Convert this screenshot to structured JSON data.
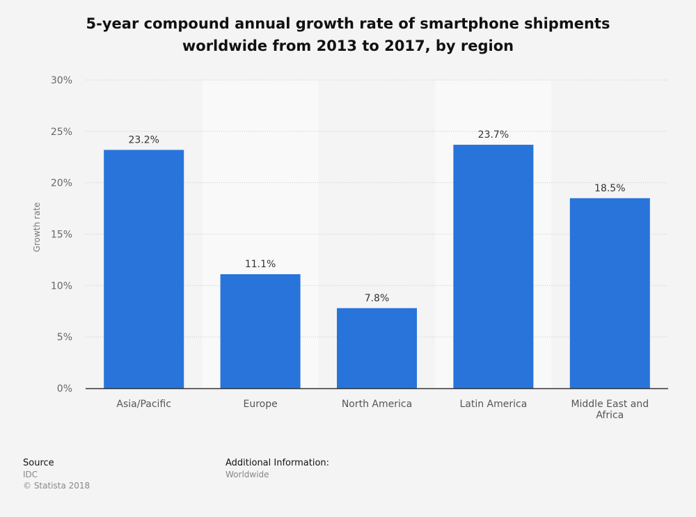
{
  "title_line1": "5-year compound annual growth rate of smartphone shipments",
  "title_line2": "worldwide from 2013 to 2017, by region",
  "chart_data": {
    "type": "bar",
    "title": "5-year compound annual growth rate of smartphone shipments worldwide from 2013 to 2017, by region",
    "xlabel": "",
    "ylabel": "Growth rate",
    "categories": [
      "Asia/Pacific",
      "Europe",
      "North America",
      "Latin America",
      "Middle East and Africa"
    ],
    "category_lines": [
      [
        "Asia/Pacific"
      ],
      [
        "Europe"
      ],
      [
        "North America"
      ],
      [
        "Latin America"
      ],
      [
        "Middle East and",
        "Africa"
      ]
    ],
    "values": [
      23.2,
      11.1,
      7.8,
      23.7,
      18.5
    ],
    "value_labels": [
      "23.2%",
      "11.1%",
      "7.8%",
      "23.7%",
      "18.5%"
    ],
    "yticks": [
      0,
      5,
      10,
      15,
      20,
      25,
      30
    ],
    "ytick_labels": [
      "0%",
      "5%",
      "10%",
      "15%",
      "20%",
      "25%",
      "30%"
    ],
    "ylim": [
      0,
      30
    ],
    "grid": true,
    "bar_color": "#2874db"
  },
  "footer": {
    "source_heading": "Source",
    "source_value": "IDC",
    "copyright": "© Statista 2018",
    "additional_heading": "Additional Information:",
    "additional_value": "Worldwide"
  }
}
